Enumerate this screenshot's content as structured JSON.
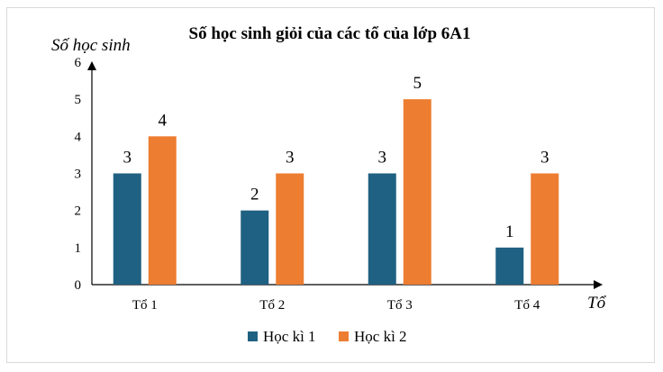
{
  "chart_data": {
    "type": "bar",
    "title": "Số học sinh giỏi của các tổ của lớp 6A1",
    "xlabel": "Tổ",
    "ylabel": "Số học sinh",
    "categories": [
      "Tổ 1",
      "Tổ 2",
      "Tổ 3",
      "Tổ 4"
    ],
    "series": [
      {
        "name": "Học kì 1",
        "values": [
          3,
          2,
          3,
          1
        ],
        "color": "#1f6182"
      },
      {
        "name": "Học kì 2",
        "values": [
          4,
          3,
          5,
          3
        ],
        "color": "#ed7d31"
      }
    ],
    "ylim": [
      0,
      6
    ],
    "yticks": [
      "0",
      "1",
      "2",
      "3",
      "4",
      "5",
      "6"
    ],
    "grid": false,
    "legend_position": "bottom",
    "data_labels": true
  }
}
